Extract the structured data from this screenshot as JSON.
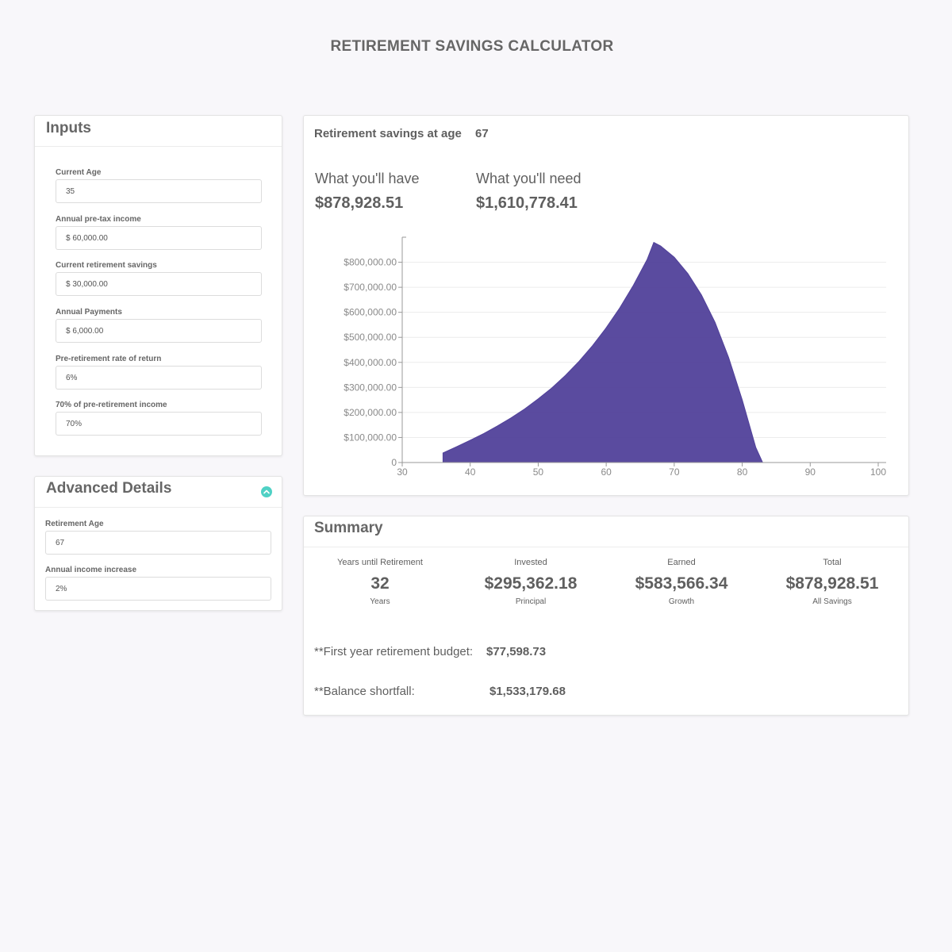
{
  "page": {
    "title": "RETIREMENT SAVINGS CALCULATOR"
  },
  "inputs": {
    "title": "Inputs",
    "fields": [
      {
        "label": "Current Age",
        "value": "35"
      },
      {
        "label": "Annual pre-tax income",
        "value": "$ 60,000.00"
      },
      {
        "label": "Current retirement savings",
        "value": "$ 30,000.00"
      },
      {
        "label": "Annual Payments",
        "value": "$ 6,000.00"
      },
      {
        "label": "Pre-retirement rate of return",
        "value": "6%"
      },
      {
        "label": "70% of pre-retirement income",
        "value": "70%"
      }
    ]
  },
  "advanced": {
    "title": "Advanced Details",
    "toggle_icon": "chevron-up-icon",
    "fields": [
      {
        "label": "Retirement Age",
        "value": "67"
      },
      {
        "label": "Annual income increase",
        "value": "2%"
      }
    ]
  },
  "overview": {
    "savings_at_age_label": "Retirement savings at age",
    "savings_at_age_value": "67",
    "have_label": "What you'll have",
    "have_value": "$878,928.51",
    "need_label": "What you'll need",
    "need_value": "$1,610,778.41"
  },
  "chart_data": {
    "type": "area",
    "x": [
      36,
      38,
      40,
      42,
      44,
      46,
      48,
      50,
      52,
      54,
      56,
      58,
      60,
      62,
      64,
      66,
      67,
      68,
      70,
      72,
      74,
      76,
      78,
      80,
      82,
      83
    ],
    "y": [
      38000,
      63000,
      89000,
      116000,
      146000,
      178000,
      214000,
      254000,
      298000,
      348000,
      404000,
      467000,
      538000,
      618000,
      708000,
      810000,
      878928,
      865000,
      820000,
      755000,
      670000,
      560000,
      420000,
      250000,
      60000,
      0
    ],
    "xlim": [
      30,
      100
    ],
    "ylim": [
      0,
      900000
    ],
    "x_ticks": [
      "30",
      "40",
      "50",
      "60",
      "70",
      "80",
      "90",
      "100"
    ],
    "y_ticks": [
      "0",
      "$100,000.00",
      "$200,000.00",
      "$300,000.00",
      "$400,000.00",
      "$500,000.00",
      "$600,000.00",
      "$700,000.00",
      "$800,000.00"
    ],
    "color": "#51419a",
    "grid": true
  },
  "summary": {
    "title": "Summary",
    "stats": [
      {
        "top": "Years until Retirement",
        "value": "32",
        "bottom": "Years"
      },
      {
        "top": "Invested",
        "value": "$295,362.18",
        "bottom": "Principal"
      },
      {
        "top": "Earned",
        "value": "$583,566.34",
        "bottom": "Growth"
      },
      {
        "top": "Total",
        "value": "$878,928.51",
        "bottom": "All Savings"
      }
    ],
    "budget_label": "**First year retirement budget:",
    "budget_value": "$77,598.73",
    "shortfall_label": "**Balance shortfall:",
    "shortfall_value": "$1,533,179.68"
  }
}
